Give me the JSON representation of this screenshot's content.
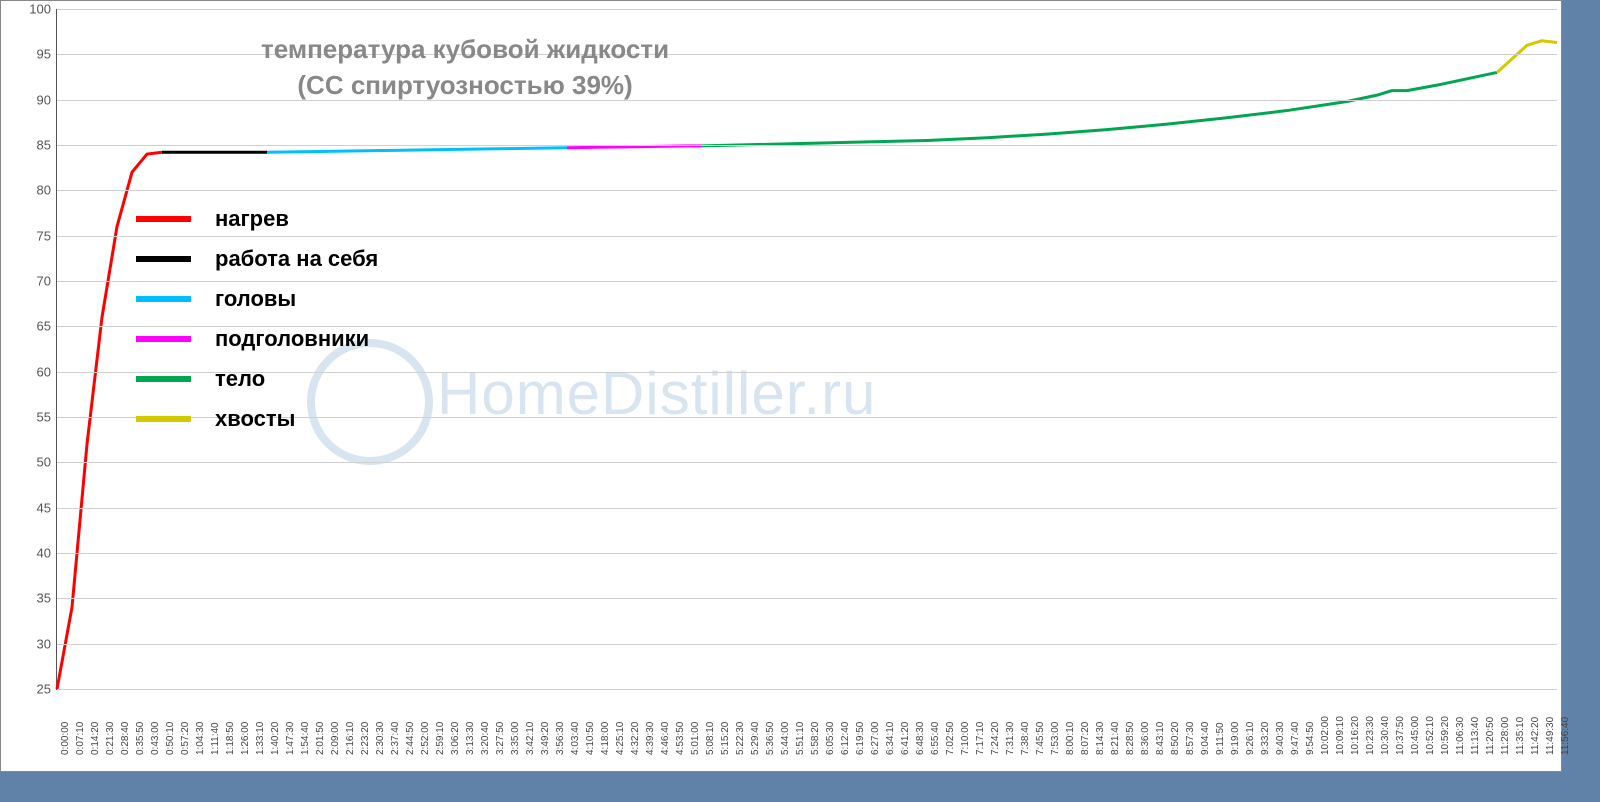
{
  "chart": {
    "type": "line",
    "title_line1": "температура кубовой жидкости",
    "title_line2": "(СС спиртуозностью 39%)",
    "title_fontsize": 26,
    "title_color": "#888888",
    "background_color": "#ffffff",
    "frame_background": "#6182a8",
    "grid_color": "#d0d0d0",
    "axis_color": "#555555",
    "watermark_text": "HomeDistiller.ru",
    "watermark_color": "#d8e5f0",
    "watermark_fontsize": 60,
    "ylim": [
      25,
      100
    ],
    "ytick_step": 5,
    "yticks": [
      25,
      30,
      35,
      40,
      45,
      50,
      55,
      60,
      65,
      70,
      75,
      80,
      85,
      90,
      95,
      100
    ],
    "xlabels": [
      "0:00:00",
      "0:07:10",
      "0:14:20",
      "0:21:30",
      "0:28:40",
      "0:35:50",
      "0:43:00",
      "0:50:10",
      "0:57:20",
      "1:04:30",
      "1:11:40",
      "1:18:50",
      "1:26:00",
      "1:33:10",
      "1:40:20",
      "1:47:30",
      "1:54:40",
      "2:01:50",
      "2:09:00",
      "2:16:10",
      "2:23:20",
      "2:30:30",
      "2:37:40",
      "2:44:50",
      "2:52:00",
      "2:59:10",
      "3:06:20",
      "3:13:30",
      "3:20:40",
      "3:27:50",
      "3:35:00",
      "3:42:10",
      "3:49:20",
      "3:56:30",
      "4:03:40",
      "4:10:50",
      "4:18:00",
      "4:25:10",
      "4:32:20",
      "4:39:30",
      "4:46:40",
      "4:53:50",
      "5:01:00",
      "5:08:10",
      "5:15:20",
      "5:22:30",
      "5:29:40",
      "5:36:50",
      "5:44:00",
      "5:51:10",
      "5:58:20",
      "6:05:30",
      "6:12:40",
      "6:19:50",
      "6:27:00",
      "6:34:10",
      "6:41:20",
      "6:48:30",
      "6:55:40",
      "7:02:50",
      "7:10:00",
      "7:17:10",
      "7:24:20",
      "7:31:30",
      "7:38:40",
      "7:45:50",
      "7:53:00",
      "8:00:10",
      "8:07:20",
      "8:14:30",
      "8:21:40",
      "8:28:50",
      "8:36:00",
      "8:43:10",
      "8:50:20",
      "8:57:30",
      "9:04:40",
      "9:11:50",
      "9:19:00",
      "9:26:10",
      "9:33:20",
      "9:40:30",
      "9:47:40",
      "9:54:50",
      "10:02:00",
      "10:09:10",
      "10:16:20",
      "10:23:30",
      "10:30:40",
      "10:37:50",
      "10:45:00",
      "10:52:10",
      "10:59:20",
      "11:06:30",
      "11:13:40",
      "11:20:50",
      "11:28:00",
      "11:35:10",
      "11:42:20",
      "11:49:30",
      "11:56:40"
    ],
    "line_width": 3,
    "segments": [
      {
        "name": "нагрев",
        "color": "#ff0000",
        "points": [
          [
            0,
            25
          ],
          [
            1,
            34
          ],
          [
            2,
            52
          ],
          [
            3,
            66
          ],
          [
            4,
            76
          ],
          [
            5,
            82
          ],
          [
            6,
            84
          ],
          [
            7,
            84.2
          ]
        ]
      },
      {
        "name": "работа на себя",
        "color": "#000000",
        "points": [
          [
            7,
            84.2
          ],
          [
            8,
            84.2
          ],
          [
            9,
            84.2
          ],
          [
            10,
            84.2
          ],
          [
            11,
            84.2
          ],
          [
            12,
            84.2
          ],
          [
            13,
            84.2
          ],
          [
            14,
            84.2
          ]
        ]
      },
      {
        "name": "головы",
        "color": "#00bfff",
        "points": [
          [
            14,
            84.2
          ],
          [
            18,
            84.3
          ],
          [
            22,
            84.4
          ],
          [
            26,
            84.5
          ],
          [
            30,
            84.6
          ],
          [
            34,
            84.7
          ]
        ]
      },
      {
        "name": "подголовники",
        "color": "#ff00ff",
        "points": [
          [
            34,
            84.7
          ],
          [
            36,
            84.75
          ],
          [
            38,
            84.8
          ],
          [
            40,
            84.85
          ],
          [
            42,
            84.9
          ],
          [
            43,
            84.9
          ]
        ]
      },
      {
        "name": "тело",
        "color": "#00a651",
        "points": [
          [
            43,
            84.9
          ],
          [
            48,
            85.1
          ],
          [
            53,
            85.3
          ],
          [
            58,
            85.5
          ],
          [
            62,
            85.8
          ],
          [
            66,
            86.2
          ],
          [
            70,
            86.7
          ],
          [
            74,
            87.3
          ],
          [
            78,
            88
          ],
          [
            82,
            88.8
          ],
          [
            86,
            89.8
          ],
          [
            88,
            90.5
          ],
          [
            89,
            91
          ],
          [
            90,
            91
          ],
          [
            92,
            91.6
          ],
          [
            94,
            92.3
          ],
          [
            96,
            93
          ]
        ]
      },
      {
        "name": "хвосты",
        "color": "#d4c800",
        "points": [
          [
            96,
            93
          ],
          [
            97,
            94.5
          ],
          [
            98,
            96
          ],
          [
            99,
            96.5
          ],
          [
            100,
            96.3
          ]
        ]
      }
    ],
    "legend_items": [
      {
        "label": "нагрев",
        "color": "#ff0000"
      },
      {
        "label": "работа на себя",
        "color": "#000000"
      },
      {
        "label": "головы",
        "color": "#00bfff"
      },
      {
        "label": "подголовники",
        "color": "#ff00ff"
      },
      {
        "label": "тело",
        "color": "#00a651"
      },
      {
        "label": "хвосты",
        "color": "#d4c800"
      }
    ],
    "legend_fontsize": 22,
    "tick_fontsize_y": 13,
    "tick_fontsize_x": 10
  }
}
